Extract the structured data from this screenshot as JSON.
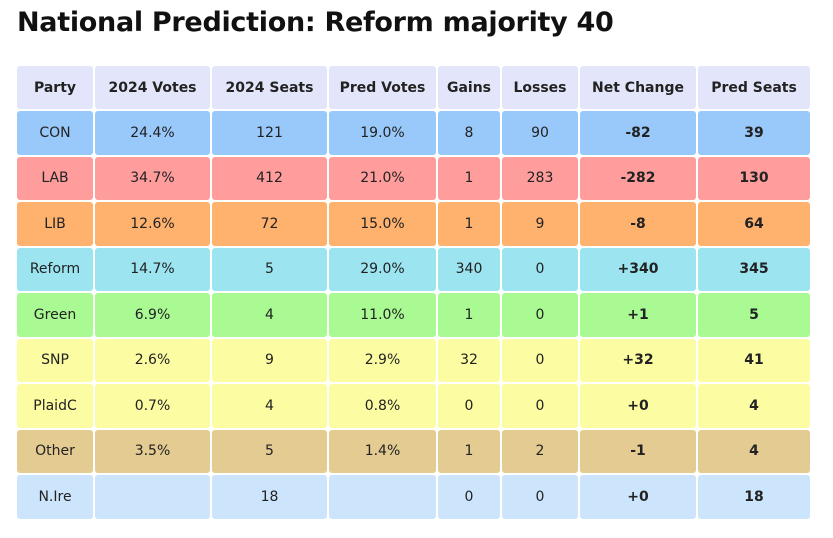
{
  "title": "National Prediction: Reform majority 40",
  "headers": [
    "Party",
    "2024 Votes",
    "2024 Seats",
    "Pred Votes",
    "Gains",
    "Losses",
    "Net Change",
    "Pred Seats"
  ],
  "rows": [
    {
      "color": "#99c9fa",
      "cells": [
        "CON",
        "24.4%",
        "121",
        "19.0%",
        "8",
        "90",
        "-82",
        "39"
      ]
    },
    {
      "color": "#ff9d9d",
      "cells": [
        "LAB",
        "34.7%",
        "412",
        "21.0%",
        "1",
        "283",
        "-282",
        "130"
      ]
    },
    {
      "color": "#ffb26e",
      "cells": [
        "LIB",
        "12.6%",
        "72",
        "15.0%",
        "1",
        "9",
        "-8",
        "64"
      ]
    },
    {
      "color": "#9be4f0",
      "cells": [
        "Reform",
        "14.7%",
        "5",
        "29.0%",
        "340",
        "0",
        "+340",
        "345"
      ]
    },
    {
      "color": "#a9fa92",
      "cells": [
        "Green",
        "6.9%",
        "4",
        "11.0%",
        "1",
        "0",
        "+1",
        "5"
      ]
    },
    {
      "color": "#fcfca2",
      "cells": [
        "SNP",
        "2.6%",
        "9",
        "2.9%",
        "32",
        "0",
        "+32",
        "41"
      ]
    },
    {
      "color": "#fcfca2",
      "cells": [
        "PlaidC",
        "0.7%",
        "4",
        "0.8%",
        "0",
        "0",
        "+0",
        "4"
      ]
    },
    {
      "color": "#e3cb91",
      "cells": [
        "Other",
        "3.5%",
        "5",
        "1.4%",
        "1",
        "2",
        "-1",
        "4"
      ]
    },
    {
      "color": "#cde5fc",
      "cells": [
        "N.Ire",
        "",
        "18",
        "",
        "0",
        "0",
        "+0",
        "18"
      ]
    }
  ]
}
